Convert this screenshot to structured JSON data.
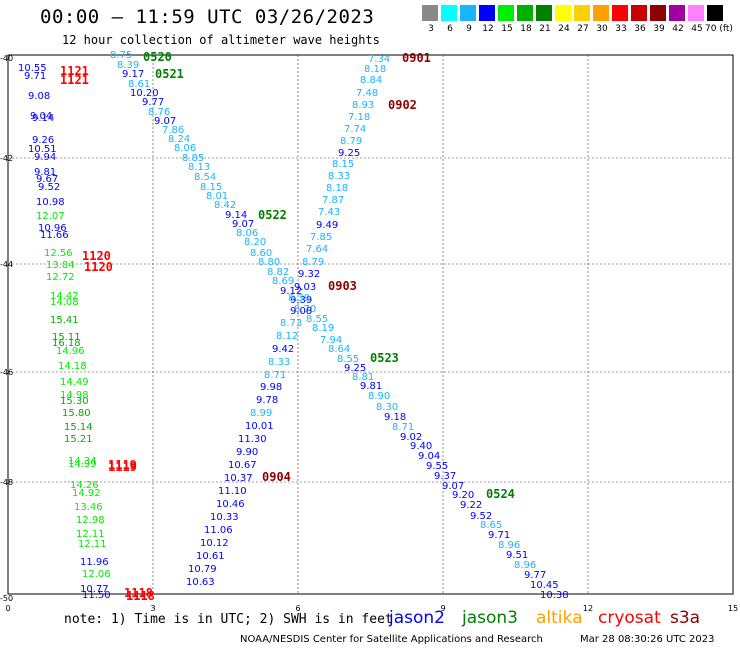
{
  "title": "00:00 – 11:59 UTC 03/26/2023",
  "subtitle": "12 hour collection of altimeter wave heights",
  "legend": {
    "labels": [
      "3",
      "6",
      "9",
      "12",
      "15",
      "18",
      "21",
      "24",
      "27",
      "30",
      "33",
      "36",
      "39",
      "42",
      "45",
      "70 (ft)"
    ],
    "colors": [
      "#888888",
      "#00ffff",
      "#1ab4ff",
      "#0000ff",
      "#00ee00",
      "#00b000",
      "#008000",
      "#ffff00",
      "#ffd000",
      "#ffa000",
      "#ff0000",
      "#c80000",
      "#8c0000",
      "#a000a0",
      "#ff80ff",
      "#000000"
    ]
  },
  "axes": {
    "lat_ticks": [
      "-40",
      "-42",
      "-44",
      "-46",
      "-48",
      "-50"
    ],
    "lon_ticks": [
      "0",
      "3",
      "6",
      "9",
      "12",
      "15"
    ]
  },
  "times": [
    {
      "label": "0520",
      "color": "#008000"
    },
    {
      "label": "0521",
      "color": "#008000"
    },
    {
      "label": "1121",
      "color": "#ff0000"
    },
    {
      "label": "1121",
      "color": "#ff0000"
    },
    {
      "label": "0901",
      "color": "#8c0000"
    },
    {
      "label": "0902",
      "color": "#8c0000"
    },
    {
      "label": "0522",
      "color": "#008000"
    },
    {
      "label": "1120",
      "color": "#ff0000"
    },
    {
      "label": "1120",
      "color": "#ff0000"
    },
    {
      "label": "0903",
      "color": "#8c0000"
    },
    {
      "label": "0523",
      "color": "#008000"
    },
    {
      "label": "1119",
      "color": "#ff0000"
    },
    {
      "label": "1119",
      "color": "#ff0000"
    },
    {
      "label": "0904",
      "color": "#8c0000"
    },
    {
      "label": "0524",
      "color": "#008000"
    },
    {
      "label": "1118",
      "color": "#ff0000"
    },
    {
      "label": "1118",
      "color": "#ff0000"
    }
  ],
  "swh_points": [
    {
      "v": "8.75",
      "c": "#1ab4ff"
    },
    {
      "v": "8.39",
      "c": "#1ab4ff"
    },
    {
      "v": "9.17",
      "c": "#0000ff"
    },
    {
      "v": "8.61",
      "c": "#1ab4ff"
    },
    {
      "v": "10.20",
      "c": "#0000ff"
    },
    {
      "v": "9.77",
      "c": "#0000ff"
    },
    {
      "v": "8.76",
      "c": "#1ab4ff"
    },
    {
      "v": "9.07",
      "c": "#0000ff"
    },
    {
      "v": "7.86",
      "c": "#1ab4ff"
    },
    {
      "v": "8.24",
      "c": "#1ab4ff"
    },
    {
      "v": "8.06",
      "c": "#1ab4ff"
    },
    {
      "v": "8.85",
      "c": "#1ab4ff"
    },
    {
      "v": "8.13",
      "c": "#1ab4ff"
    },
    {
      "v": "8.54",
      "c": "#1ab4ff"
    },
    {
      "v": "8.15",
      "c": "#1ab4ff"
    },
    {
      "v": "8.01",
      "c": "#1ab4ff"
    },
    {
      "v": "8.42",
      "c": "#1ab4ff"
    },
    {
      "v": "9.14",
      "c": "#0000ff"
    },
    {
      "v": "9.07",
      "c": "#0000ff"
    },
    {
      "v": "8.06",
      "c": "#1ab4ff"
    },
    {
      "v": "8.20",
      "c": "#1ab4ff"
    },
    {
      "v": "8.60",
      "c": "#1ab4ff"
    },
    {
      "v": "8.80",
      "c": "#1ab4ff"
    },
    {
      "v": "8.82",
      "c": "#1ab4ff"
    },
    {
      "v": "8.69",
      "c": "#1ab4ff"
    },
    {
      "v": "9.12",
      "c": "#0000ff"
    },
    {
      "v": "9.39",
      "c": "#0000ff"
    },
    {
      "v": "8.70",
      "c": "#1ab4ff"
    },
    {
      "v": "8.55",
      "c": "#1ab4ff"
    },
    {
      "v": "8.19",
      "c": "#1ab4ff"
    },
    {
      "v": "7.94",
      "c": "#1ab4ff"
    },
    {
      "v": "8.64",
      "c": "#1ab4ff"
    },
    {
      "v": "8.55",
      "c": "#1ab4ff"
    },
    {
      "v": "9.25",
      "c": "#0000ff"
    },
    {
      "v": "8.81",
      "c": "#1ab4ff"
    },
    {
      "v": "9.81",
      "c": "#0000ff"
    },
    {
      "v": "8.90",
      "c": "#1ab4ff"
    },
    {
      "v": "8.30",
      "c": "#1ab4ff"
    },
    {
      "v": "9.18",
      "c": "#0000ff"
    },
    {
      "v": "8.71",
      "c": "#1ab4ff"
    },
    {
      "v": "9.02",
      "c": "#0000ff"
    },
    {
      "v": "9.40",
      "c": "#0000ff"
    },
    {
      "v": "9.04",
      "c": "#0000ff"
    },
    {
      "v": "9.55",
      "c": "#0000ff"
    },
    {
      "v": "9.37",
      "c": "#0000ff"
    },
    {
      "v": "9.07",
      "c": "#0000ff"
    },
    {
      "v": "9.20",
      "c": "#0000ff"
    },
    {
      "v": "9.22",
      "c": "#0000ff"
    },
    {
      "v": "9.52",
      "c": "#0000ff"
    },
    {
      "v": "8.65",
      "c": "#1ab4ff"
    },
    {
      "v": "9.71",
      "c": "#0000ff"
    },
    {
      "v": "8.96",
      "c": "#1ab4ff"
    },
    {
      "v": "9.51",
      "c": "#0000ff"
    },
    {
      "v": "8.96",
      "c": "#1ab4ff"
    },
    {
      "v": "9.77",
      "c": "#0000ff"
    },
    {
      "v": "10.45",
      "c": "#0000ff"
    },
    {
      "v": "10.38",
      "c": "#0000ff"
    },
    {
      "v": "7.34",
      "c": "#1ab4ff"
    },
    {
      "v": "8.18",
      "c": "#1ab4ff"
    },
    {
      "v": "8.84",
      "c": "#1ab4ff"
    },
    {
      "v": "7.48",
      "c": "#1ab4ff"
    },
    {
      "v": "8.93",
      "c": "#1ab4ff"
    },
    {
      "v": "7.18",
      "c": "#1ab4ff"
    },
    {
      "v": "7.74",
      "c": "#1ab4ff"
    },
    {
      "v": "8.79",
      "c": "#1ab4ff"
    },
    {
      "v": "9.25",
      "c": "#0000ff"
    },
    {
      "v": "8.15",
      "c": "#1ab4ff"
    },
    {
      "v": "8.33",
      "c": "#1ab4ff"
    },
    {
      "v": "8.18",
      "c": "#1ab4ff"
    },
    {
      "v": "7.87",
      "c": "#1ab4ff"
    },
    {
      "v": "7.43",
      "c": "#1ab4ff"
    },
    {
      "v": "9.49",
      "c": "#0000ff"
    },
    {
      "v": "7.85",
      "c": "#1ab4ff"
    },
    {
      "v": "7.64",
      "c": "#1ab4ff"
    },
    {
      "v": "8.79",
      "c": "#1ab4ff"
    },
    {
      "v": "9.32",
      "c": "#0000ff"
    },
    {
      "v": "9.03",
      "c": "#0000ff"
    },
    {
      "v": "8.39",
      "c": "#1ab4ff"
    },
    {
      "v": "9.08",
      "c": "#0000ff"
    },
    {
      "v": "8.73",
      "c": "#1ab4ff"
    },
    {
      "v": "8.12",
      "c": "#1ab4ff"
    },
    {
      "v": "9.42",
      "c": "#0000ff"
    },
    {
      "v": "8.33",
      "c": "#1ab4ff"
    },
    {
      "v": "8.71",
      "c": "#1ab4ff"
    },
    {
      "v": "9.98",
      "c": "#0000ff"
    },
    {
      "v": "9.78",
      "c": "#0000ff"
    },
    {
      "v": "8.99",
      "c": "#1ab4ff"
    },
    {
      "v": "10.01",
      "c": "#0000ff"
    },
    {
      "v": "11.30",
      "c": "#0000ff"
    },
    {
      "v": "9.90",
      "c": "#0000ff"
    },
    {
      "v": "10.67",
      "c": "#0000ff"
    },
    {
      "v": "10.37",
      "c": "#0000ff"
    },
    {
      "v": "11.10",
      "c": "#0000ff"
    },
    {
      "v": "10.46",
      "c": "#0000ff"
    },
    {
      "v": "10.33",
      "c": "#0000ff"
    },
    {
      "v": "11.06",
      "c": "#0000ff"
    },
    {
      "v": "10.12",
      "c": "#0000ff"
    },
    {
      "v": "10.61",
      "c": "#0000ff"
    },
    {
      "v": "10.79",
      "c": "#0000ff"
    },
    {
      "v": "10.63",
      "c": "#0000ff"
    },
    {
      "v": "10.55",
      "c": "#0000ff"
    },
    {
      "v": "9.71",
      "c": "#0000ff"
    },
    {
      "v": "9.08",
      "c": "#0000ff"
    },
    {
      "v": "9.04",
      "c": "#0000ff"
    },
    {
      "v": "9.14",
      "c": "#0000ff"
    },
    {
      "v": "9.26",
      "c": "#0000ff"
    },
    {
      "v": "10.51",
      "c": "#0000ff"
    },
    {
      "v": "9.94",
      "c": "#0000ff"
    },
    {
      "v": "9.81",
      "c": "#0000ff"
    },
    {
      "v": "9.67",
      "c": "#0000ff"
    },
    {
      "v": "9.52",
      "c": "#0000ff"
    },
    {
      "v": "10.98",
      "c": "#0000ff"
    },
    {
      "v": "12.07",
      "c": "#00ee00"
    },
    {
      "v": "10.96",
      "c": "#0000ff"
    },
    {
      "v": "11.66",
      "c": "#0000ff"
    },
    {
      "v": "12.56",
      "c": "#00ee00"
    },
    {
      "v": "13.84",
      "c": "#00ee00"
    },
    {
      "v": "12.72",
      "c": "#00ee00"
    },
    {
      "v": "14.42",
      "c": "#00ee00"
    },
    {
      "v": "14.08",
      "c": "#00ee00"
    },
    {
      "v": "15.41",
      "c": "#00b000"
    },
    {
      "v": "15.11",
      "c": "#00b000"
    },
    {
      "v": "16.18",
      "c": "#00b000"
    },
    {
      "v": "14.96",
      "c": "#00ee00"
    },
    {
      "v": "14.18",
      "c": "#00ee00"
    },
    {
      "v": "14.49",
      "c": "#00ee00"
    },
    {
      "v": "14.98",
      "c": "#00ee00"
    },
    {
      "v": "15.30",
      "c": "#00b000"
    },
    {
      "v": "15.80",
      "c": "#00b000"
    },
    {
      "v": "15.14",
      "c": "#00b000"
    },
    {
      "v": "15.21",
      "c": "#00b000"
    },
    {
      "v": "14.34",
      "c": "#00ee00"
    },
    {
      "v": "14.99",
      "c": "#00ee00"
    },
    {
      "v": "14.26",
      "c": "#00ee00"
    },
    {
      "v": "14.92",
      "c": "#00ee00"
    },
    {
      "v": "13.46",
      "c": "#00ee00"
    },
    {
      "v": "12.98",
      "c": "#00ee00"
    },
    {
      "v": "12.11",
      "c": "#00ee00"
    },
    {
      "v": "12.11",
      "c": "#00ee00"
    },
    {
      "v": "11.96",
      "c": "#0000ff"
    },
    {
      "v": "12.06",
      "c": "#00ee00"
    },
    {
      "v": "10.77",
      "c": "#0000ff"
    },
    {
      "v": "11.50",
      "c": "#0000ff"
    }
  ],
  "note": "note: 1) Time is in UTC; 2) SWH is in feet",
  "satellites": [
    {
      "name": "jason2",
      "color": "#0000ff"
    },
    {
      "name": "jason3",
      "color": "#008000"
    },
    {
      "name": "altika",
      "color": "#ffa000"
    },
    {
      "name": "cryosat",
      "color": "#ff0000"
    },
    {
      "name": "s3a",
      "color": "#8c0000"
    }
  ],
  "credit": "NOAA/NESDIS Center for Satellite Applications and Research",
  "stamp": "Mar 28 08:30:26 UTC 2023"
}
